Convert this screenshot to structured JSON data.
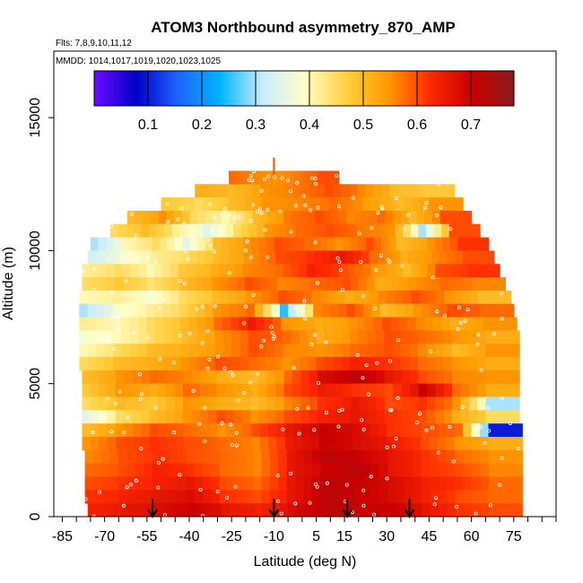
{
  "chart_data": {
    "type": "heatmap",
    "title": "ATOM3 Northbound asymmetry_870_AMP",
    "subtitle_flights": "Flts: 7,8,9,10,11,12",
    "subtitle_dates": "MMDD: 1014,1017,1019,1020,1023,1025",
    "xlabel": "Latitude (deg N)",
    "ylabel": "Altitude (m)",
    "xlim": [
      -88,
      90
    ],
    "ylim": [
      0,
      17500
    ],
    "x_ticks": [
      -85,
      -70,
      -55,
      -40,
      -25,
      -10,
      5,
      15,
      30,
      45,
      60,
      75
    ],
    "y_ticks": [
      0,
      5000,
      10000,
      15000
    ],
    "colorbar": {
      "range": [
        0.0,
        0.78
      ],
      "ticks": [
        0.1,
        0.2,
        0.3,
        0.4,
        0.5,
        0.6,
        0.7
      ],
      "colors": [
        "#6a0dff",
        "#0000c8",
        "#1e64ff",
        "#00b4ff",
        "#c8ecff",
        "#ffffc8",
        "#ffd040",
        "#ff9a00",
        "#ff2a00",
        "#c80000",
        "#8a1a1a"
      ]
    },
    "rows": [
      {
        "alt": 12750,
        "x0": -26,
        "x1": 13,
        "values": [
          0.58,
          0.56,
          0.55,
          0.57,
          0.6
        ]
      },
      {
        "alt": 12250,
        "x0": -38,
        "x1": 54,
        "values": [
          0.52,
          0.5,
          0.55,
          0.57,
          0.6,
          0.56,
          0.5,
          0.48
        ]
      },
      {
        "alt": 11750,
        "x0": -50,
        "x1": 57,
        "values": [
          0.48,
          0.45,
          0.5,
          0.55,
          0.56,
          0.58,
          0.54,
          0.5,
          0.55
        ]
      },
      {
        "alt": 11250,
        "x0": -62,
        "x1": 60,
        "values": [
          0.5,
          0.55,
          0.45,
          0.4,
          0.5,
          0.57,
          0.6,
          0.56,
          0.58,
          0.5,
          0.6
        ]
      },
      {
        "alt": 10750,
        "x0": -68,
        "x1": 63,
        "values": [
          0.45,
          0.5,
          0.42,
          0.35,
          0.45,
          0.55,
          0.58,
          0.6,
          0.57,
          0.55,
          0.3,
          0.6
        ]
      },
      {
        "alt": 10250,
        "x0": -75,
        "x1": 66,
        "values": [
          0.3,
          0.4,
          0.45,
          0.35,
          0.5,
          0.55,
          0.6,
          0.58,
          0.55,
          0.6,
          0.5,
          0.55,
          0.62
        ]
      },
      {
        "alt": 9750,
        "x0": -76,
        "x1": 68,
        "values": [
          0.33,
          0.38,
          0.42,
          0.45,
          0.5,
          0.55,
          0.6,
          0.62,
          0.66,
          0.58,
          0.52,
          0.56,
          0.6
        ]
      },
      {
        "alt": 9250,
        "x0": -78,
        "x1": 70,
        "values": [
          0.42,
          0.45,
          0.4,
          0.48,
          0.52,
          0.56,
          0.58,
          0.64,
          0.6,
          0.55,
          0.5,
          0.6,
          0.62
        ]
      },
      {
        "alt": 8750,
        "x0": -78,
        "x1": 72,
        "values": [
          0.45,
          0.48,
          0.44,
          0.5,
          0.55,
          0.6,
          0.56,
          0.58,
          0.6,
          0.52,
          0.55,
          0.58,
          0.56
        ]
      },
      {
        "alt": 8250,
        "x0": -79,
        "x1": 74,
        "values": [
          0.4,
          0.42,
          0.38,
          0.45,
          0.5,
          0.55,
          0.6,
          0.56,
          0.52,
          0.56,
          0.6,
          0.55,
          0.5
        ]
      },
      {
        "alt": 7750,
        "x0": -79,
        "x1": 75,
        "values": [
          0.3,
          0.38,
          0.42,
          0.46,
          0.55,
          0.58,
          0.25,
          0.56,
          0.6,
          0.5,
          0.55,
          0.6,
          0.58
        ]
      },
      {
        "alt": 7250,
        "x0": -79,
        "x1": 76,
        "values": [
          0.42,
          0.4,
          0.45,
          0.5,
          0.58,
          0.65,
          0.55,
          0.52,
          0.55,
          0.6,
          0.56,
          0.52,
          0.55
        ]
      },
      {
        "alt": 6750,
        "x0": -79,
        "x1": 77,
        "values": [
          0.38,
          0.4,
          0.45,
          0.5,
          0.55,
          0.6,
          0.58,
          0.52,
          0.56,
          0.6,
          0.58,
          0.55,
          0.52
        ]
      },
      {
        "alt": 6250,
        "x0": -79,
        "x1": 77,
        "values": [
          0.4,
          0.45,
          0.5,
          0.52,
          0.55,
          0.6,
          0.56,
          0.55,
          0.58,
          0.6,
          0.56,
          0.5,
          0.55
        ]
      },
      {
        "alt": 5750,
        "x0": -79,
        "x1": 77,
        "values": [
          0.45,
          0.5,
          0.52,
          0.55,
          0.6,
          0.58,
          0.55,
          0.6,
          0.64,
          0.62,
          0.58,
          0.55,
          0.52
        ]
      },
      {
        "alt": 5250,
        "x0": -78,
        "x1": 77,
        "values": [
          0.5,
          0.55,
          0.58,
          0.56,
          0.52,
          0.5,
          0.58,
          0.68,
          0.72,
          0.66,
          0.6,
          0.56,
          0.55
        ]
      },
      {
        "alt": 4750,
        "x0": -78,
        "x1": 77,
        "values": [
          0.48,
          0.55,
          0.52,
          0.58,
          0.55,
          0.52,
          0.6,
          0.65,
          0.62,
          0.6,
          0.7,
          0.58,
          0.52
        ]
      },
      {
        "alt": 4250,
        "x0": -78,
        "x1": 77,
        "values": [
          0.45,
          0.5,
          0.48,
          0.55,
          0.52,
          0.5,
          0.56,
          0.62,
          0.66,
          0.6,
          0.62,
          0.55,
          0.3
        ]
      },
      {
        "alt": 3750,
        "x0": -78,
        "x1": 77,
        "values": [
          0.35,
          0.45,
          0.5,
          0.55,
          0.6,
          0.55,
          0.6,
          0.64,
          0.66,
          0.62,
          0.6,
          0.52,
          0.45
        ]
      },
      {
        "alt": 3250,
        "x0": -78,
        "x1": 78,
        "values": [
          0.5,
          0.55,
          0.6,
          0.58,
          0.55,
          0.6,
          0.66,
          0.7,
          0.68,
          0.62,
          0.6,
          0.58,
          0.1
        ]
      },
      {
        "alt": 2750,
        "x0": -78,
        "x1": 78,
        "values": [
          0.55,
          0.6,
          0.62,
          0.6,
          0.58,
          0.56,
          0.65,
          0.7,
          0.68,
          0.65,
          0.6,
          0.55,
          0.52
        ]
      },
      {
        "alt": 2250,
        "x0": -77,
        "x1": 78,
        "values": [
          0.56,
          0.6,
          0.62,
          0.6,
          0.58,
          0.56,
          0.66,
          0.72,
          0.7,
          0.66,
          0.62,
          0.58,
          0.55
        ]
      },
      {
        "alt": 1750,
        "x0": -77,
        "x1": 78,
        "values": [
          0.58,
          0.6,
          0.64,
          0.62,
          0.58,
          0.56,
          0.66,
          0.7,
          0.72,
          0.66,
          0.62,
          0.6,
          0.56
        ]
      },
      {
        "alt": 1250,
        "x0": -77,
        "x1": 78,
        "values": [
          0.6,
          0.62,
          0.64,
          0.66,
          0.6,
          0.58,
          0.66,
          0.72,
          0.7,
          0.68,
          0.64,
          0.62,
          0.58
        ]
      },
      {
        "alt": 750,
        "x0": -77,
        "x1": 78,
        "values": [
          0.62,
          0.64,
          0.66,
          0.68,
          0.62,
          0.6,
          0.66,
          0.72,
          0.7,
          0.68,
          0.64,
          0.6,
          0.58
        ]
      },
      {
        "alt": 250,
        "x0": -76,
        "x1": 78,
        "values": [
          0.64,
          0.66,
          0.68,
          0.7,
          0.66,
          0.64,
          0.68,
          0.72,
          0.7,
          0.7,
          0.66,
          0.62,
          0.6
        ]
      }
    ],
    "arrows_lat": [
      -53,
      -10,
      16,
      38
    ],
    "spike_lat": -10,
    "spike_range": [
      12750,
      13500
    ]
  }
}
